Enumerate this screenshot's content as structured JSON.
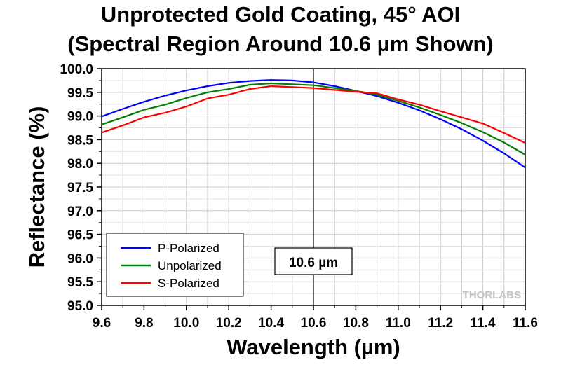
{
  "chart_data": {
    "type": "line",
    "title": "Unprotected Gold Coating, 45° AOI",
    "subtitle": "(Spectral Region Around 10.6 µm Shown)",
    "xlabel": "Wavelength (µm)",
    "ylabel": "Reflectance (%)",
    "xlim": [
      9.6,
      11.6
    ],
    "ylim": [
      95.0,
      100.0
    ],
    "xticks": [
      "9.6",
      "9.8",
      "10.0",
      "10.2",
      "10.4",
      "10.6",
      "10.8",
      "11.0",
      "11.2",
      "11.4",
      "11.6"
    ],
    "yticks": [
      "95.0",
      "95.5",
      "96.0",
      "96.5",
      "97.0",
      "97.5",
      "98.0",
      "98.5",
      "99.0",
      "99.5",
      "100.0"
    ],
    "grid": true,
    "legend_position": "bottom-left",
    "series": [
      {
        "name": "P-Polarized",
        "color": "#0000ff",
        "x": [
          9.6,
          9.7,
          9.8,
          9.9,
          10.0,
          10.1,
          10.2,
          10.3,
          10.4,
          10.5,
          10.6,
          10.7,
          10.8,
          10.9,
          11.0,
          11.1,
          11.2,
          11.3,
          11.4,
          11.5,
          11.6
        ],
        "y": [
          98.99,
          99.15,
          99.3,
          99.43,
          99.54,
          99.63,
          99.7,
          99.74,
          99.76,
          99.75,
          99.71,
          99.63,
          99.53,
          99.42,
          99.28,
          99.12,
          98.93,
          98.72,
          98.48,
          98.21,
          97.91
        ]
      },
      {
        "name": "Unpolarized",
        "color": "#008000",
        "x": [
          9.6,
          9.7,
          9.8,
          9.9,
          10.0,
          10.1,
          10.2,
          10.3,
          10.4,
          10.5,
          10.6,
          10.7,
          10.8,
          10.9,
          11.0,
          11.1,
          11.2,
          11.3,
          11.4,
          11.5,
          11.6
        ],
        "y": [
          98.82,
          98.97,
          99.13,
          99.24,
          99.38,
          99.5,
          99.57,
          99.66,
          99.69,
          99.67,
          99.65,
          99.59,
          99.53,
          99.45,
          99.32,
          99.18,
          99.02,
          98.85,
          98.66,
          98.44,
          98.18
        ]
      },
      {
        "name": "S-Polarized",
        "color": "#ff0000",
        "x": [
          9.6,
          9.7,
          9.8,
          9.9,
          10.0,
          10.1,
          10.2,
          10.3,
          10.4,
          10.5,
          10.6,
          10.7,
          10.8,
          10.9,
          11.0,
          11.1,
          11.2,
          11.3,
          11.4,
          11.5,
          11.6
        ],
        "y": [
          98.65,
          98.8,
          98.97,
          99.07,
          99.2,
          99.37,
          99.45,
          99.57,
          99.63,
          99.61,
          99.59,
          99.55,
          99.51,
          99.48,
          99.35,
          99.24,
          99.1,
          98.97,
          98.84,
          98.64,
          98.43
        ]
      }
    ],
    "annotations": [
      {
        "text": "10.6 µm",
        "x": 10.6
      }
    ],
    "watermark": "THORLABS"
  }
}
